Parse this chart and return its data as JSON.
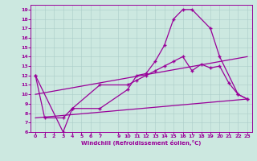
{
  "xlabel": "Windchill (Refroidissement éolien,°C)",
  "background_color": "#cce8e0",
  "line_color": "#990099",
  "ylim": [
    6,
    19.5
  ],
  "xlim": [
    -0.5,
    23.5
  ],
  "yticks": [
    6,
    7,
    8,
    9,
    10,
    11,
    12,
    13,
    14,
    15,
    16,
    17,
    18,
    19
  ],
  "xticks": [
    0,
    1,
    2,
    3,
    4,
    5,
    6,
    7,
    9,
    10,
    11,
    12,
    13,
    14,
    15,
    16,
    17,
    18,
    19,
    20,
    21,
    22,
    23
  ],
  "line1_x": [
    0,
    1,
    3,
    4,
    7,
    10,
    11,
    12,
    13,
    14,
    15,
    16,
    17,
    19,
    20,
    22,
    23
  ],
  "line1_y": [
    12,
    7.5,
    7.5,
    8.5,
    8.5,
    10.5,
    12.0,
    12.2,
    13.5,
    15.2,
    18.0,
    19.0,
    19.0,
    17.0,
    14.0,
    10.0,
    9.5
  ],
  "line2_x": [
    0,
    3,
    4,
    7,
    10,
    11,
    12,
    13,
    14,
    15,
    16,
    17,
    18,
    19,
    20,
    21,
    22,
    23
  ],
  "line2_y": [
    12,
    6.0,
    8.5,
    11.0,
    11.0,
    11.5,
    12.0,
    12.5,
    13.0,
    13.5,
    14.0,
    12.5,
    13.2,
    12.8,
    13.0,
    11.2,
    10.0,
    9.5
  ],
  "line3_x": [
    0,
    23
  ],
  "line3_y": [
    7.5,
    9.5
  ],
  "line4_x": [
    0,
    23
  ],
  "line4_y": [
    10.0,
    14.0
  ]
}
